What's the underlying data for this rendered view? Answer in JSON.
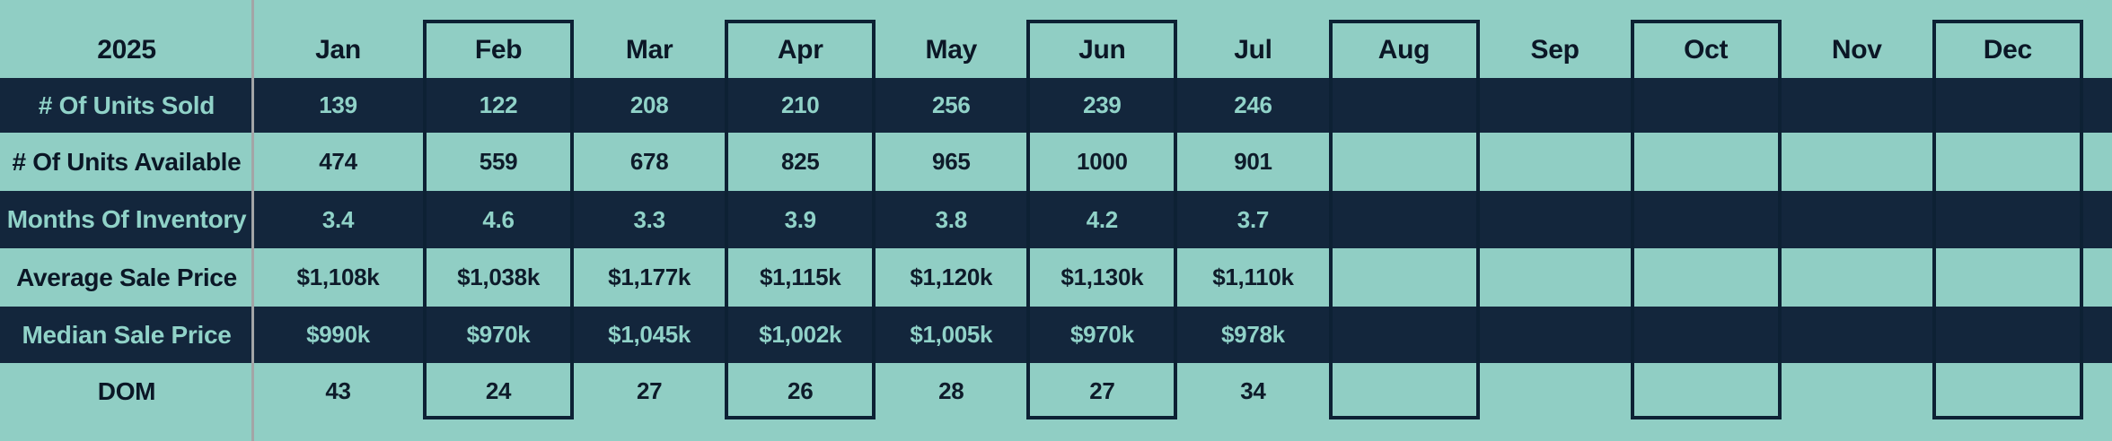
{
  "table": {
    "year": "2025",
    "months": [
      "Jan",
      "Feb",
      "Mar",
      "Apr",
      "May",
      "Jun",
      "Jul",
      "Aug",
      "Sep",
      "Oct",
      "Nov",
      "Dec"
    ],
    "rows": [
      {
        "label": "# Of Units Sold",
        "values": [
          "139",
          "122",
          "208",
          "210",
          "256",
          "239",
          "246",
          "",
          "",
          "",
          "",
          ""
        ]
      },
      {
        "label": "# Of Units Available",
        "values": [
          "474",
          "559",
          "678",
          "825",
          "965",
          "1000",
          "901",
          "",
          "",
          "",
          "",
          ""
        ]
      },
      {
        "label": "Months Of Inventory",
        "values": [
          "3.4",
          "4.6",
          "3.3",
          "3.9",
          "3.8",
          "4.2",
          "3.7",
          "",
          "",
          "",
          "",
          ""
        ]
      },
      {
        "label": "Average Sale Price",
        "values": [
          "$1,108k",
          "$1,038k",
          "$1,177k",
          "$1,115k",
          "$1,120k",
          "$1,130k",
          "$1,110k",
          "",
          "",
          "",
          "",
          ""
        ]
      },
      {
        "label": "Median Sale Price",
        "values": [
          "$990k",
          "$970k",
          "$1,045k",
          "$1,002k",
          "$1,005k",
          "$970k",
          "$978k",
          "",
          "",
          "",
          "",
          ""
        ]
      },
      {
        "label": "DOM",
        "values": [
          "43",
          "24",
          "27",
          "26",
          "28",
          "27",
          "34",
          "",
          "",
          "",
          "",
          ""
        ]
      }
    ]
  },
  "colors": {
    "light_background": "#90CEC4",
    "dark_row_background": "#13263C",
    "box_border": "#0D2134",
    "teal_text": "#90D2C8",
    "dark_text": "#0B1726",
    "divider_gray": "#A3A5A7"
  },
  "chart_data": {
    "type": "table",
    "title": "2025 Monthly Real Estate Statistics",
    "categories": [
      "Jan",
      "Feb",
      "Mar",
      "Apr",
      "May",
      "Jun",
      "Jul",
      "Aug",
      "Sep",
      "Oct",
      "Nov",
      "Dec"
    ],
    "series": [
      {
        "name": "# Of Units Sold",
        "values": [
          139,
          122,
          208,
          210,
          256,
          239,
          246,
          null,
          null,
          null,
          null,
          null
        ]
      },
      {
        "name": "# Of Units Available",
        "values": [
          474,
          559,
          678,
          825,
          965,
          1000,
          901,
          null,
          null,
          null,
          null,
          null
        ]
      },
      {
        "name": "Months Of Inventory",
        "values": [
          3.4,
          4.6,
          3.3,
          3.9,
          3.8,
          4.2,
          3.7,
          null,
          null,
          null,
          null,
          null
        ]
      },
      {
        "name": "Average Sale Price ($k)",
        "values": [
          1108,
          1038,
          1177,
          1115,
          1120,
          1130,
          1110,
          null,
          null,
          null,
          null,
          null
        ]
      },
      {
        "name": "Median Sale Price ($k)",
        "values": [
          990,
          970,
          1045,
          1002,
          1005,
          970,
          978,
          null,
          null,
          null,
          null,
          null
        ]
      },
      {
        "name": "DOM",
        "values": [
          43,
          24,
          27,
          26,
          28,
          27,
          34,
          null,
          null,
          null,
          null,
          null
        ]
      }
    ],
    "layout": "rows are metrics, columns are months; data present Jan–Jul only; every second month column outlined with a dark box"
  }
}
